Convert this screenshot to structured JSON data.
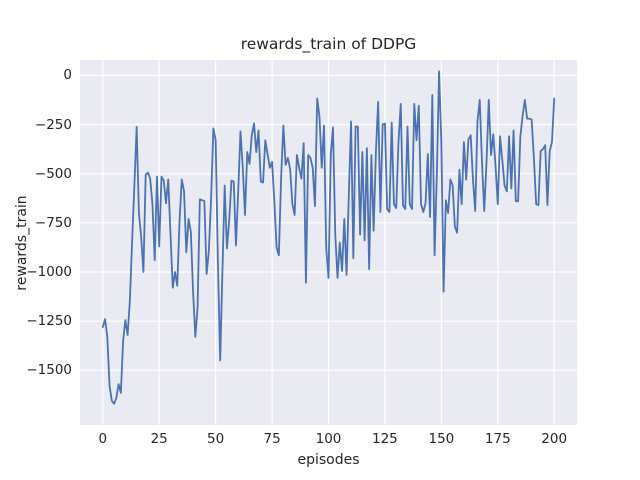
{
  "figure": {
    "title": "rewards_train of DDPG",
    "xlabel": "episodes",
    "ylabel": "rewards_train"
  },
  "chart_data": {
    "type": "line",
    "title": "rewards_train of DDPG",
    "xlabel": "episodes",
    "ylabel": "rewards_train",
    "legend": false,
    "grid": true,
    "style": "seaborn-darkgrid",
    "plot_bg_color": "#EAEAF2",
    "grid_color": "#FFFFFF",
    "line_color": "#4C72B0",
    "text_color": "#262626",
    "x_tick_values": [
      0,
      25,
      50,
      75,
      100,
      125,
      150,
      175,
      200
    ],
    "x_tick_labels": [
      "0",
      "25",
      "50",
      "75",
      "100",
      "125",
      "150",
      "175",
      "200"
    ],
    "y_tick_values": [
      0,
      -250,
      -500,
      -750,
      -1000,
      -1250,
      -1500
    ],
    "y_tick_labels": [
      "0",
      "−250",
      "−500",
      "−750",
      "−1000",
      "−1250",
      "−1500"
    ],
    "xlim": [
      -10.1,
      210.1
    ],
    "ylim": [
      -1778,
      78
    ],
    "x_start": 0,
    "x_step": 1,
    "x_end": 200,
    "values": [
      -1280,
      -1240,
      -1330,
      -1580,
      -1655,
      -1670,
      -1640,
      -1570,
      -1615,
      -1350,
      -1245,
      -1320,
      -1145,
      -840,
      -560,
      -262,
      -700,
      -820,
      -1000,
      -505,
      -495,
      -525,
      -655,
      -940,
      -515,
      -870,
      -515,
      -535,
      -650,
      -530,
      -810,
      -1080,
      -1000,
      -1070,
      -740,
      -530,
      -590,
      -900,
      -730,
      -795,
      -1100,
      -1330,
      -1180,
      -630,
      -635,
      -640,
      -1010,
      -890,
      -620,
      -270,
      -330,
      -950,
      -1450,
      -1000,
      -560,
      -880,
      -740,
      -535,
      -540,
      -865,
      -590,
      -285,
      -465,
      -710,
      -390,
      -450,
      -305,
      -245,
      -390,
      -280,
      -540,
      -545,
      -330,
      -400,
      -470,
      -440,
      -640,
      -875,
      -915,
      -525,
      -255,
      -455,
      -420,
      -475,
      -655,
      -710,
      -405,
      -470,
      -525,
      -345,
      -1055,
      -405,
      -420,
      -470,
      -665,
      -118,
      -210,
      -470,
      -255,
      -880,
      -1030,
      -405,
      -265,
      -810,
      -1030,
      -850,
      -995,
      -730,
      -1015,
      -610,
      -235,
      -930,
      -260,
      -260,
      -810,
      -390,
      -840,
      -370,
      -985,
      -405,
      -790,
      -390,
      -135,
      -695,
      -250,
      -245,
      -680,
      -695,
      -240,
      -655,
      -675,
      -340,
      -145,
      -660,
      -680,
      -260,
      -655,
      -680,
      -145,
      -330,
      -155,
      -655,
      -695,
      -650,
      -400,
      -720,
      -100,
      -915,
      -500,
      20,
      -345,
      -1100,
      -635,
      -700,
      -530,
      -560,
      -770,
      -800,
      -480,
      -655,
      -340,
      -530,
      -325,
      -305,
      -530,
      -690,
      -235,
      -125,
      -440,
      -690,
      -445,
      -125,
      -405,
      -300,
      -460,
      -655,
      -310,
      -430,
      -560,
      -590,
      -310,
      -575,
      -280,
      -640,
      -640,
      -310,
      -205,
      -125,
      -220,
      -220,
      -225,
      -420,
      -655,
      -660,
      -385,
      -375,
      -355,
      -660,
      -385,
      -340,
      -118
    ]
  }
}
